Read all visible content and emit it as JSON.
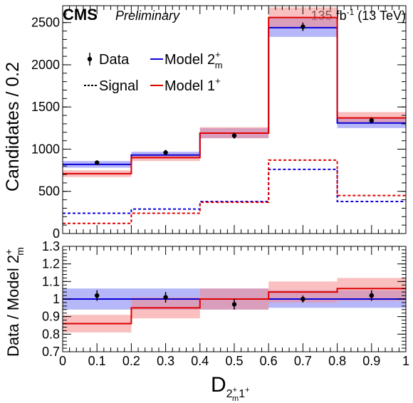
{
  "header": {
    "experiment": "CMS",
    "status": "Preliminary",
    "lumi_value": "135 fb",
    "lumi_exp": "-1",
    "energy": " (13 TeV)"
  },
  "colors": {
    "model_2m": "#0a00d8",
    "model_1p": "#e00000",
    "band_2m": "#7a7cf2",
    "band_1p": "#f58a8a",
    "data": "#000000"
  },
  "legend": {
    "data_label": "Data",
    "signal_label": "Signal",
    "model_2m_base": "Model 2",
    "model_2m_sup": "+",
    "model_2m_sub": "m",
    "model_1p_base": "Model 1",
    "model_1p_sup": "+"
  },
  "axes": {
    "ylabel_top": "Candidates / 0.2",
    "ylabel_bottom_base": "Data / Model 2",
    "ylabel_bottom_sup": "+",
    "ylabel_bottom_sub": "m",
    "xlabel_base": "D",
    "xlabel_sub1": "2",
    "xlabel_sub1_sup": "+",
    "xlabel_sub1_sub": "m",
    "xlabel_sub2": "1",
    "xlabel_sub2_sup": "+"
  },
  "chart_data": [
    {
      "type": "bar",
      "panel": "main",
      "x_edges": [
        0,
        0.2,
        0.4,
        0.6,
        0.8,
        1.0
      ],
      "xlim": [
        0,
        1
      ],
      "ylim": [
        0,
        2700
      ],
      "x_ticks": [
        "0",
        "0.1",
        "0.2",
        "0.3",
        "0.4",
        "0.5",
        "0.6",
        "0.7",
        "0.8",
        "0.9",
        "1"
      ],
      "y_ticks": [
        "0",
        "500",
        "1000",
        "1500",
        "2000",
        "2500"
      ],
      "data": {
        "x": [
          0.1,
          0.3,
          0.5,
          0.7,
          0.9
        ],
        "y": [
          840,
          960,
          1160,
          2450,
          1340
        ],
        "err": [
          25,
          30,
          35,
          50,
          35
        ]
      },
      "series": [
        {
          "name": "Model 2m+",
          "style": "solid",
          "color": "#0a00d8",
          "values": [
            820,
            930,
            1190,
            2440,
            1310
          ],
          "band": [
            [
              780,
              860
            ],
            [
              890,
              970
            ],
            [
              1130,
              1250
            ],
            [
              2330,
              2560
            ],
            [
              1250,
              1370
            ]
          ]
        },
        {
          "name": "Model 1+",
          "style": "solid",
          "color": "#e00000",
          "values": [
            710,
            900,
            1190,
            2560,
            1370
          ],
          "band": [
            [
              670,
              750
            ],
            [
              860,
              940
            ],
            [
              1130,
              1260
            ],
            [
              2440,
              2680
            ],
            [
              1310,
              1440
            ]
          ]
        },
        {
          "name": "Signal (2m+)",
          "style": "dashed",
          "color": "#0a00d8",
          "values": [
            240,
            290,
            380,
            760,
            380
          ]
        },
        {
          "name": "Signal (1+)",
          "style": "dashed",
          "color": "#e00000",
          "values": [
            120,
            240,
            370,
            870,
            450
          ]
        }
      ]
    },
    {
      "type": "bar",
      "panel": "ratio",
      "x_edges": [
        0,
        0.2,
        0.4,
        0.6,
        0.8,
        1.0
      ],
      "xlim": [
        0,
        1
      ],
      "ylim": [
        0.7,
        1.3
      ],
      "y_ticks": [
        "0.7",
        "0.8",
        "0.9",
        "1",
        "1.1",
        "1.2",
        "1.3"
      ],
      "data": {
        "x": [
          0.1,
          0.3,
          0.5,
          0.7,
          0.9
        ],
        "y": [
          1.02,
          1.01,
          0.97,
          1.0,
          1.02
        ],
        "err": [
          0.03,
          0.03,
          0.03,
          0.02,
          0.03
        ]
      },
      "series": [
        {
          "name": "Model 2m+",
          "color": "#0a00d8",
          "values": [
            1.0,
            1.0,
            1.0,
            1.0,
            1.0
          ],
          "band": [
            [
              0.94,
              1.06
            ],
            [
              0.94,
              1.06
            ],
            [
              0.94,
              1.06
            ],
            [
              0.95,
              1.05
            ],
            [
              0.95,
              1.05
            ]
          ]
        },
        {
          "name": "Model 1+",
          "color": "#e00000",
          "values": [
            0.86,
            0.95,
            1.0,
            1.04,
            1.06
          ],
          "band": [
            [
              0.81,
              0.91
            ],
            [
              0.89,
              1.01
            ],
            [
              0.94,
              1.06
            ],
            [
              0.98,
              1.1
            ],
            [
              0.99,
              1.12
            ]
          ]
        }
      ]
    }
  ]
}
